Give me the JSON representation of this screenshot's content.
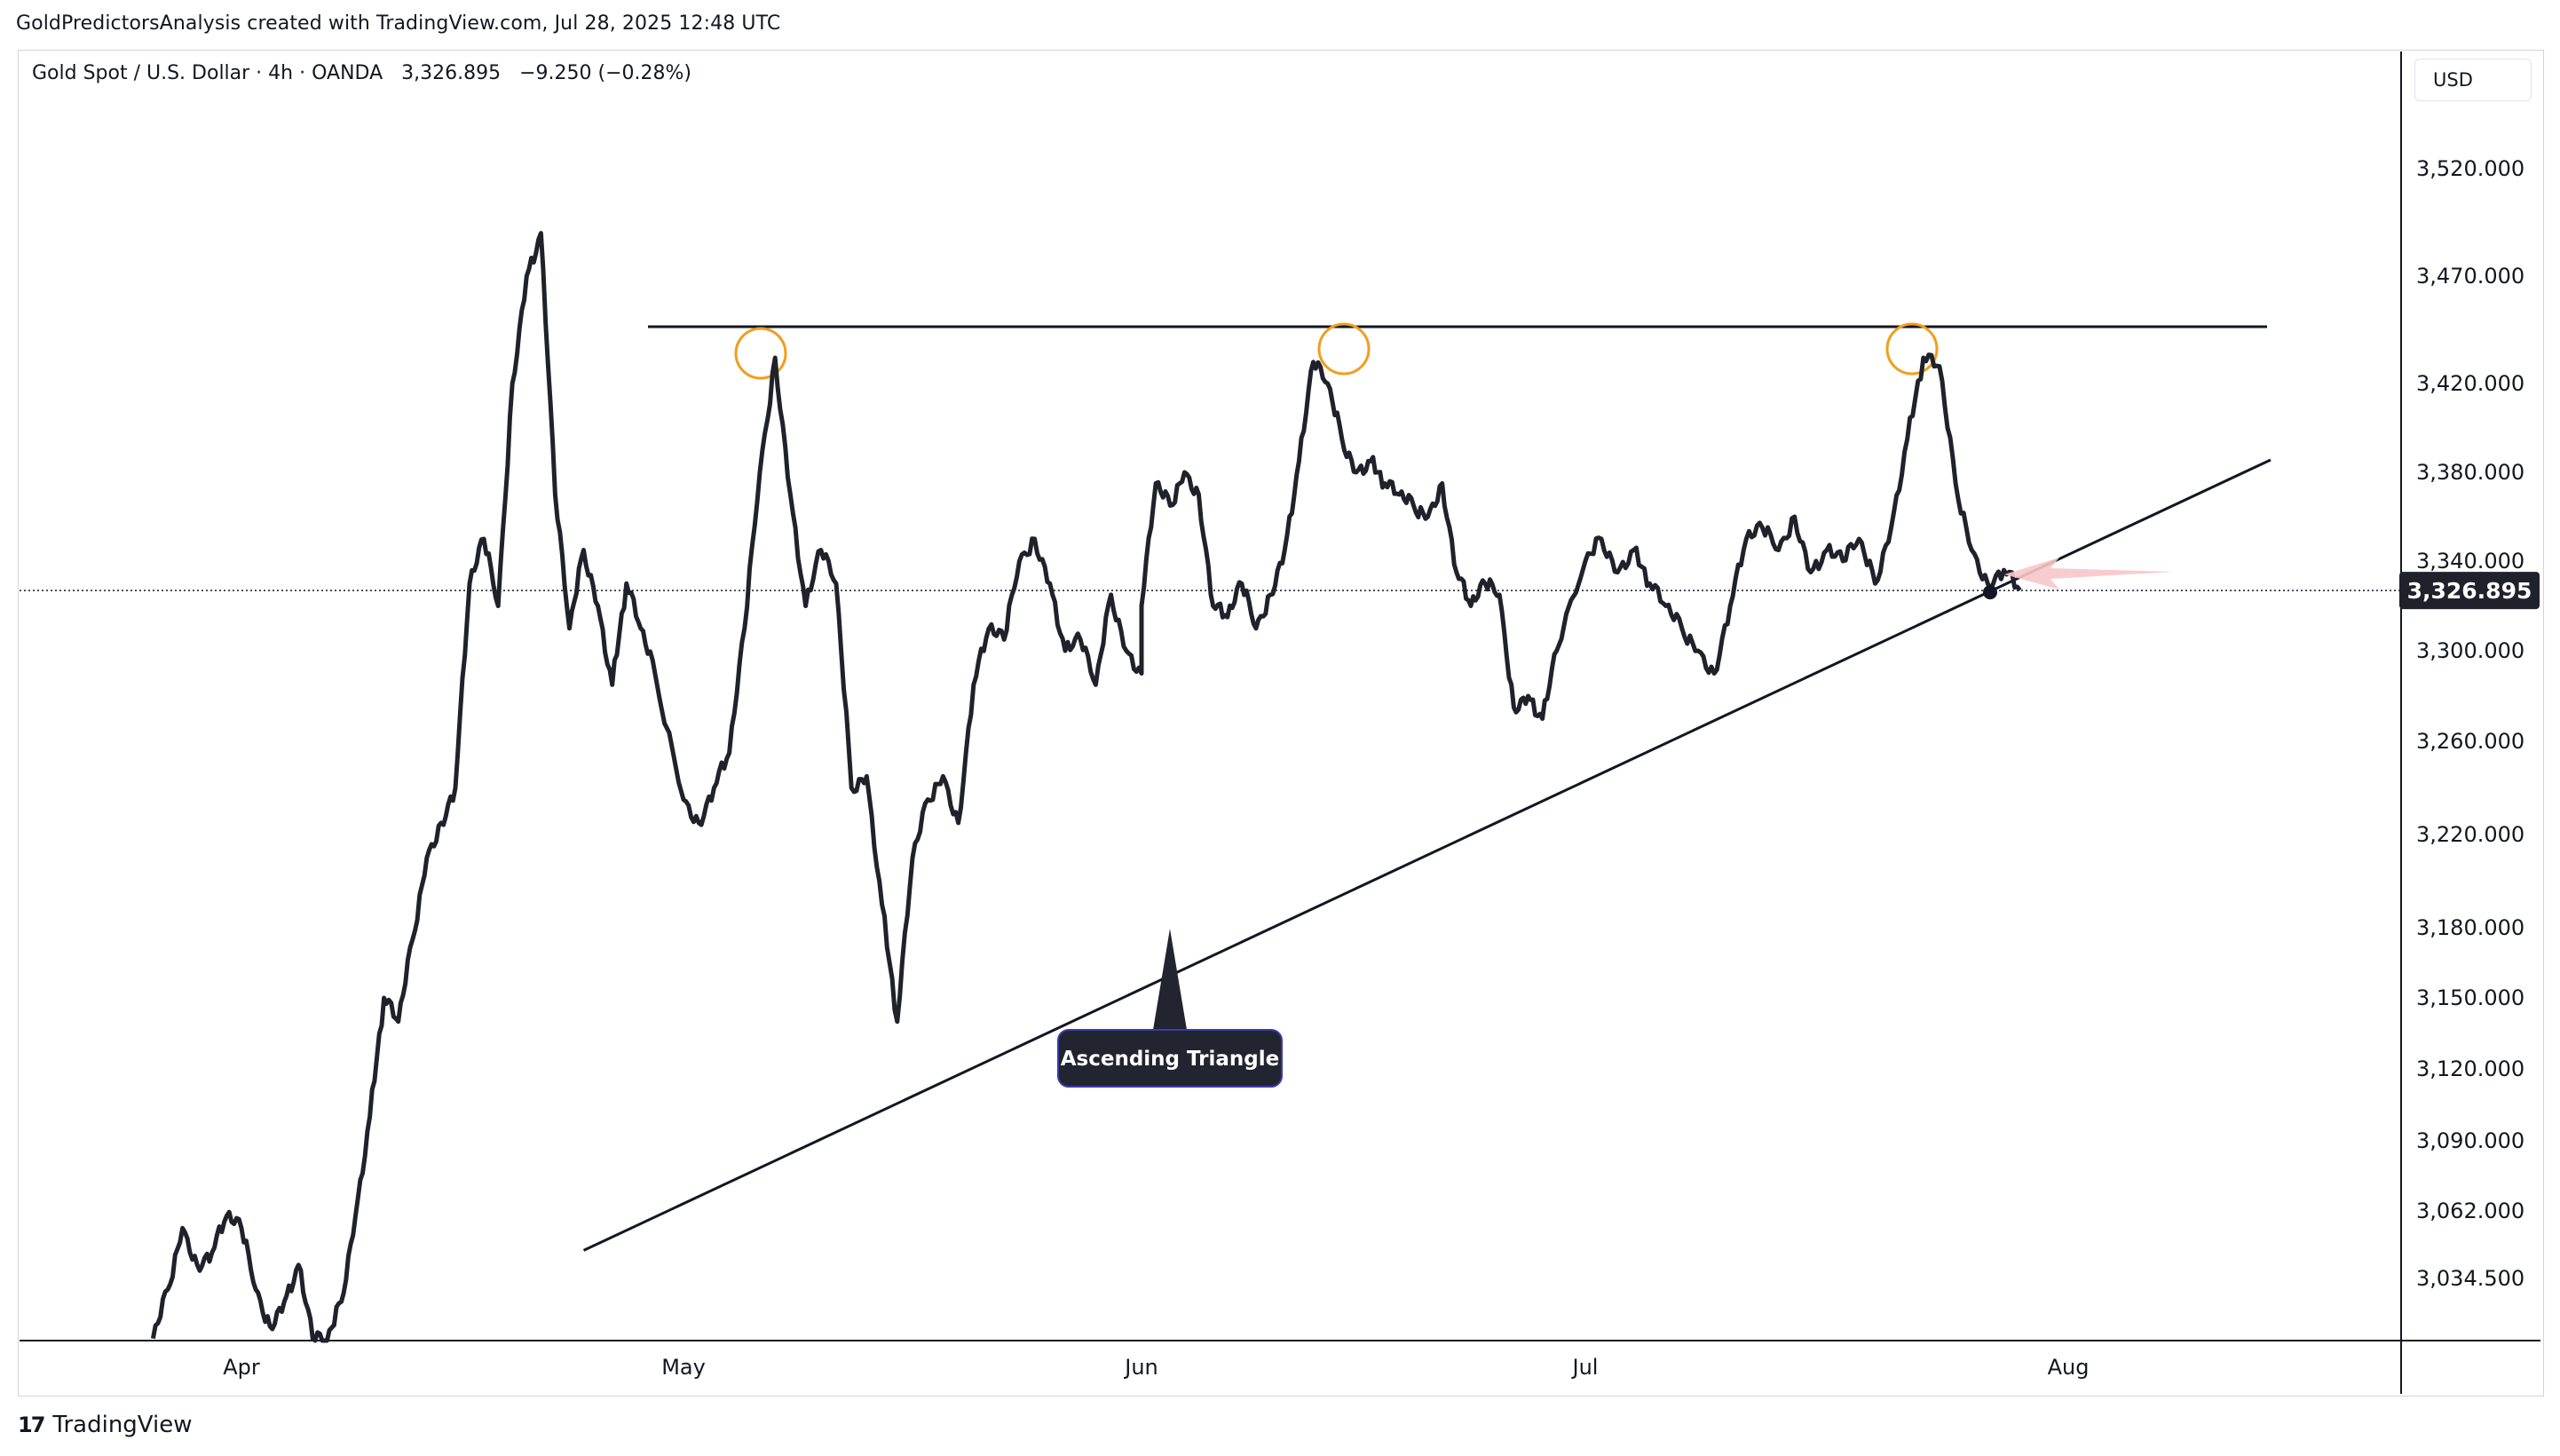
{
  "header": {
    "caption": "GoldPredictorsAnalysis created with TradingView.com, Jul 28, 2025 12:48 UTC",
    "symbol": "Gold Spot / U.S. Dollar · 4h · OANDA",
    "last_price": "3,326.895",
    "change": "−9.250 (−0.28%)",
    "currency": "USD"
  },
  "footer": {
    "logo_mark": "17",
    "brand": "TradingView"
  },
  "colors": {
    "price_line": "#1f222b",
    "trendline": "#131722",
    "highlight_circle": "#f29d1e",
    "price_label_bg": "#1f222b",
    "arrow": "#f7c6c9",
    "callout_bg": "#222530"
  },
  "annotations": {
    "pattern_label": "Ascending Triangle",
    "arrow_icon": "left-arrow-icon"
  },
  "chart_data": {
    "type": "line",
    "xlabel": "",
    "ylabel": "",
    "x_ticks": [
      "Apr",
      "May",
      "Jun",
      "Jul",
      "Aug"
    ],
    "y_ticks": [
      "3,520.000",
      "3,470.000",
      "3,420.000",
      "3,380.000",
      "3,340.000",
      "3,300.000",
      "3,260.000",
      "3,220.000",
      "3,180.000",
      "3,150.000",
      "3,120.000",
      "3,090.000",
      "3,062.000",
      "3,034.500"
    ],
    "y_scale": "log",
    "ylim": [
      3010,
      3550
    ],
    "grid": false,
    "current_price": 3326.895,
    "resistance_level": 3432,
    "support_line": [
      [
        "Apr 25",
        3098
      ],
      [
        "Jul 31",
        3385
      ]
    ],
    "series": [
      {
        "values": [
          [
            "Mar 26",
            3010
          ],
          [
            "Mar 27",
            3030
          ],
          [
            "Mar 28",
            3055
          ],
          [
            "Mar 29",
            3040
          ],
          [
            "Mar 30",
            3045
          ],
          [
            "Mar 31",
            3060
          ],
          [
            "Apr 1",
            3055
          ],
          [
            "Apr 2",
            3030
          ],
          [
            "Apr 3",
            3015
          ],
          [
            "Apr 4",
            3025
          ],
          [
            "Apr 5",
            3040
          ],
          [
            "Apr 6",
            3010
          ],
          [
            "Apr 7",
            2995
          ],
          [
            "Apr 8",
            3025
          ],
          [
            "Apr 9",
            3060
          ],
          [
            "Apr 10",
            3100
          ],
          [
            "Apr 11",
            3150
          ],
          [
            "Apr 12",
            3140
          ],
          [
            "Apr 13",
            3175
          ],
          [
            "Apr 14",
            3210
          ],
          [
            "Apr 15",
            3225
          ],
          [
            "Apr 16",
            3240
          ],
          [
            "Apr 17",
            3330
          ],
          [
            "Apr 18",
            3350
          ],
          [
            "Apr 19",
            3320
          ],
          [
            "Apr 20",
            3420
          ],
          [
            "Apr 21",
            3470
          ],
          [
            "Apr 22",
            3490
          ],
          [
            "Apr 23",
            3370
          ],
          [
            "Apr 24",
            3310
          ],
          [
            "Apr 25",
            3345
          ],
          [
            "Apr 26",
            3320
          ],
          [
            "Apr 27",
            3285
          ],
          [
            "Apr 28",
            3330
          ],
          [
            "Apr 29",
            3310
          ],
          [
            "Apr 30",
            3290
          ],
          [
            "May 1",
            3235
          ],
          [
            "May 2",
            3225
          ],
          [
            "May 3",
            3240
          ],
          [
            "May 4",
            3255
          ],
          [
            "May 5",
            3310
          ],
          [
            "May 6",
            3380
          ],
          [
            "May 7",
            3432
          ],
          [
            "May 8",
            3370
          ],
          [
            "May 9",
            3320
          ],
          [
            "May 10",
            3345
          ],
          [
            "May 11",
            3330
          ],
          [
            "May 12",
            3240
          ],
          [
            "May 13",
            3245
          ],
          [
            "May 14",
            3190
          ],
          [
            "May 15",
            3140
          ],
          [
            "May 16",
            3210
          ],
          [
            "May 17",
            3235
          ],
          [
            "May 18",
            3245
          ],
          [
            "May 19",
            3225
          ],
          [
            "May 20",
            3285
          ],
          [
            "May 21",
            3310
          ],
          [
            "May 22",
            3305
          ],
          [
            "May 23",
            3340
          ],
          [
            "May 24",
            3350
          ],
          [
            "May 25",
            3330
          ],
          [
            "May 26",
            3300
          ],
          [
            "May 27",
            3305
          ],
          [
            "May 28",
            3285
          ],
          [
            "May 29",
            3325
          ],
          [
            "May 30",
            3300
          ],
          [
            "May 31",
            3290
          ],
          [
            "Jun 1",
            3320
          ],
          [
            "Jun 2",
            3375
          ],
          [
            "Jun 3",
            3365
          ],
          [
            "Jun 4",
            3380
          ],
          [
            "Jun 5",
            3370
          ],
          [
            "Jun 6",
            3320
          ],
          [
            "Jun 7",
            3315
          ],
          [
            "Jun 8",
            3330
          ],
          [
            "Jun 9",
            3310
          ],
          [
            "Jun 10",
            3325
          ],
          [
            "Jun 11",
            3345
          ],
          [
            "Jun 12",
            3385
          ],
          [
            "Jun 13",
            3430
          ],
          [
            "Jun 14",
            3420
          ],
          [
            "Jun 15",
            3395
          ],
          [
            "Jun 16",
            3380
          ],
          [
            "Jun 17",
            3385
          ],
          [
            "Jun 18",
            3375
          ],
          [
            "Jun 19",
            3370
          ],
          [
            "Jun 20",
            3365
          ],
          [
            "Jun 21",
            3360
          ],
          [
            "Jun 22",
            3375
          ],
          [
            "Jun 23",
            3335
          ],
          [
            "Jun 24",
            3320
          ],
          [
            "Jun 25",
            3330
          ],
          [
            "Jun 26",
            3325
          ],
          [
            "Jun 27",
            3275
          ],
          [
            "Jun 28",
            3280
          ],
          [
            "Jun 29",
            3270
          ],
          [
            "Jun 30",
            3300
          ],
          [
            "Jul 1",
            3340
          ],
          [
            "Jul 2",
            3350
          ],
          [
            "Jul 3",
            3335
          ],
          [
            "Jul 4",
            3345
          ],
          [
            "Jul 5",
            3330
          ],
          [
            "Jul 6",
            3320
          ],
          [
            "Jul 7",
            3310
          ],
          [
            "Jul 8",
            3300
          ],
          [
            "Jul 9",
            3290
          ],
          [
            "Jul 10",
            3320
          ],
          [
            "Jul 11",
            3350
          ],
          [
            "Jul 12",
            3355
          ],
          [
            "Jul 13",
            3345
          ],
          [
            "Jul 14",
            3360
          ],
          [
            "Jul 15",
            3335
          ],
          [
            "Jul 16",
            3345
          ],
          [
            "Jul 17",
            3340
          ],
          [
            "Jul 18",
            3350
          ],
          [
            "Jul 19",
            3330
          ],
          [
            "Jul 20",
            3355
          ],
          [
            "Jul 21",
            3395
          ],
          [
            "Jul 22",
            3432
          ],
          [
            "Jul 23",
            3428
          ],
          [
            "Jul 24",
            3375
          ],
          [
            "Jul 25",
            3345
          ],
          [
            "Jul 26",
            3330
          ],
          [
            "Jul 27",
            3336
          ],
          [
            "Jul 28",
            3327
          ]
        ]
      }
    ]
  }
}
